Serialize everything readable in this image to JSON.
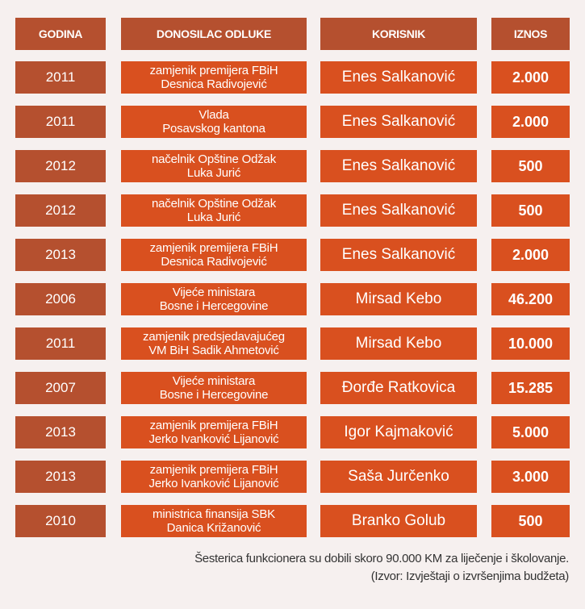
{
  "headers": [
    "GODINA",
    "DONOSILAC ODLUKE",
    "KORISNIK",
    "IZNOS"
  ],
  "rows": [
    {
      "godina": "2011",
      "donosilac": "zamjenik premijera FBiH\nDesnica Radivojević",
      "korisnik": "Enes Salkanović",
      "iznos": "2.000"
    },
    {
      "godina": "2011",
      "donosilac": "Vlada\nPosavskog kantona",
      "korisnik": "Enes Salkanović",
      "iznos": "2.000"
    },
    {
      "godina": "2012",
      "donosilac": "načelnik Opštine Odžak\nLuka Jurić",
      "korisnik": "Enes Salkanović",
      "iznos": "500"
    },
    {
      "godina": "2012",
      "donosilac": "načelnik Opštine Odžak\nLuka Jurić",
      "korisnik": "Enes Salkanović",
      "iznos": "500"
    },
    {
      "godina": "2013",
      "donosilac": "zamjenik premijera FBiH\nDesnica Radivojević",
      "korisnik": "Enes Salkanović",
      "iznos": "2.000"
    },
    {
      "godina": "2006",
      "donosilac": "Vijeće ministara\nBosne i Hercegovine",
      "korisnik": "Mirsad Kebo",
      "iznos": "46.200"
    },
    {
      "godina": "2011",
      "donosilac": "zamjenik predsjedavajućeg\nVM BiH Sadik Ahmetović",
      "korisnik": "Mirsad Kebo",
      "iznos": "10.000"
    },
    {
      "godina": "2007",
      "donosilac": "Vijeće ministara\nBosne i Hercegovine",
      "korisnik": "Đorđe Ratkovica",
      "iznos": "15.285"
    },
    {
      "godina": "2013",
      "donosilac": "zamjenik premijera FBiH\nJerko Ivanković Lijanović",
      "korisnik": "Igor Kajmaković",
      "iznos": "5.000"
    },
    {
      "godina": "2013",
      "donosilac": "zamjenik premijera FBiH\nJerko Ivanković Lijanović",
      "korisnik": "Saša Jurčenko",
      "iznos": "3.000"
    },
    {
      "godina": "2010",
      "donosilac": "ministrica finansija SBK\nDanica Križanović",
      "korisnik": "Branko Golub",
      "iznos": "500"
    }
  ],
  "footer": {
    "note": "Šesterica funkcionera su dobili skoro 90.000 KM za liječenje i školovanje.",
    "source": "(Izvor: Izvještaji o izvršenjima budžeta)"
  }
}
